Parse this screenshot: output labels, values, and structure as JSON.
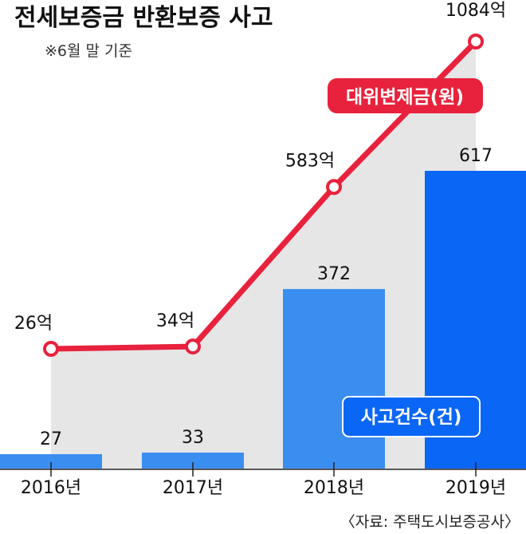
{
  "chart_data": {
    "type": "bar+line",
    "title": "전세보증금 반환보증 사고",
    "subtitle": "※6월 말 기준",
    "categories": [
      "2016년",
      "2017년",
      "2018년",
      "2019년"
    ],
    "series": [
      {
        "name": "사고건수(건)",
        "type": "bar",
        "values": [
          27,
          33,
          372,
          617
        ],
        "labels": [
          "27",
          "33",
          "372",
          "617"
        ],
        "color": "#3a8ef0",
        "highlight_color": "#0a66f5"
      },
      {
        "name": "대위변제금(원)",
        "type": "line",
        "values": [
          26,
          34,
          583,
          1084
        ],
        "labels": [
          "26억",
          "34억",
          "583억",
          "1084억"
        ],
        "color": "#e8223d"
      }
    ],
    "area_fill": "#e6e6e6",
    "source": "〈자료: 주택도시보증공사〉"
  }
}
